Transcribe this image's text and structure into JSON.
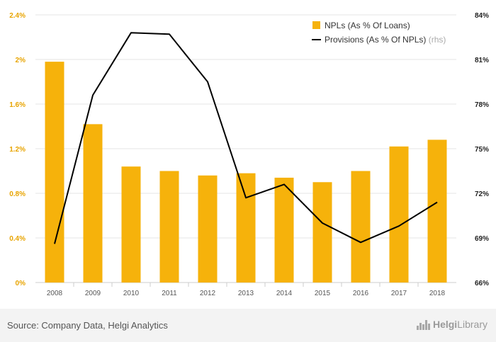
{
  "chart_data": {
    "type": "bar",
    "categories": [
      "2008",
      "2009",
      "2010",
      "2011",
      "2012",
      "2013",
      "2014",
      "2015",
      "2016",
      "2017",
      "2018"
    ],
    "series": [
      {
        "name": "NPLs (As % Of Loans)",
        "type": "bar",
        "axis": "left",
        "values": [
          1.98,
          1.42,
          1.04,
          1.0,
          0.96,
          0.98,
          0.94,
          0.9,
          1.0,
          1.22,
          1.28
        ]
      },
      {
        "name": "Provisions (As % Of NPLs)",
        "suffix": "(rhs)",
        "type": "line",
        "axis": "right",
        "values": [
          68.6,
          78.6,
          82.8,
          82.7,
          79.5,
          71.7,
          72.6,
          70.0,
          68.7,
          69.8,
          71.4
        ]
      }
    ],
    "left_axis": {
      "ylim": [
        0,
        2.4
      ],
      "ticks": [
        0,
        0.4,
        0.8,
        1.2,
        1.6,
        2.0,
        2.4
      ],
      "tick_labels": [
        "0%",
        "0.4%",
        "0.8%",
        "1.2%",
        "1.6%",
        "2%",
        "2.4%"
      ]
    },
    "right_axis": {
      "ylim": [
        66,
        84
      ],
      "ticks": [
        66,
        69,
        72,
        75,
        78,
        81,
        84
      ],
      "tick_labels": [
        "66%",
        "69%",
        "72%",
        "75%",
        "78%",
        "81%",
        "84%"
      ]
    },
    "legend_position": "top-right",
    "grid": "horizontal",
    "colors": {
      "bar": "#F6B20B",
      "line": "#000000",
      "left_axis_text": "#E8A400",
      "right_axis_text": "#222222",
      "grid": "#e6e6e6"
    }
  },
  "footer": {
    "source": "Source: Company Data, Helgi Analytics",
    "brand_prefix": "Helgi",
    "brand_suffix": "Library"
  }
}
